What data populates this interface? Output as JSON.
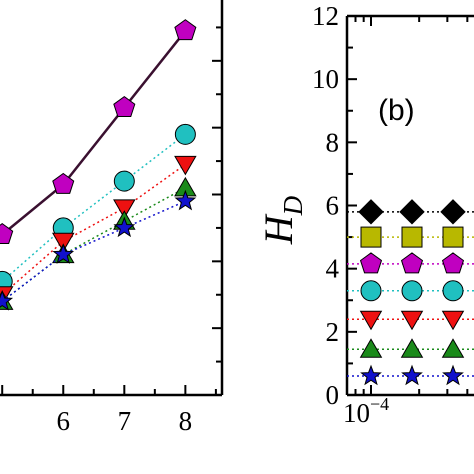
{
  "chart_data": [
    {
      "type": "line",
      "panel": "left (cropped)",
      "xlim": [
        4.8,
        8.6
      ],
      "ylim": [
        0,
        12
      ],
      "x_ticks": [
        {
          "value": 6,
          "label": "6"
        },
        {
          "value": 7,
          "label": "7"
        },
        {
          "value": 8,
          "label": "8"
        }
      ],
      "grid": false,
      "series": [
        {
          "marker": "pentagon",
          "color": "#c000c0",
          "line": "solid",
          "line_color": "#3a1030",
          "x": [
            5,
            6,
            7,
            8
          ],
          "y": [
            4.8,
            6.3,
            8.6,
            10.9
          ]
        },
        {
          "marker": "circle",
          "color": "#20c0c0",
          "line": "dotted",
          "x": [
            5,
            6,
            7,
            8
          ],
          "y": [
            3.4,
            5.0,
            6.4,
            7.8
          ]
        },
        {
          "marker": "triangle-down",
          "color": "#ee1111",
          "line": "dotted",
          "x": [
            5,
            6,
            7,
            8
          ],
          "y": [
            3.0,
            4.6,
            5.6,
            6.9
          ]
        },
        {
          "marker": "triangle-up",
          "color": "#1a8a1a",
          "line": "dotted",
          "x": [
            5,
            6,
            7,
            8
          ],
          "y": [
            2.8,
            4.2,
            5.2,
            6.2
          ]
        },
        {
          "marker": "star",
          "color": "#1111cc",
          "line": "dotted",
          "x": [
            5,
            6,
            7,
            8
          ],
          "y": [
            2.8,
            4.2,
            5.0,
            5.8
          ]
        }
      ]
    },
    {
      "type": "scatter",
      "panel": "right (cropped)",
      "annotation": "(b)",
      "ylabel_main": "H",
      "ylabel_sub": "D",
      "ylim": [
        0,
        12
      ],
      "x_scale": "log",
      "x_tick_label": {
        "base": "10",
        "exponent": "−4"
      },
      "y_ticks": [
        {
          "value": 0,
          "label": "0"
        },
        {
          "value": 2,
          "label": "2"
        },
        {
          "value": 4,
          "label": "4"
        },
        {
          "value": 6,
          "label": "6"
        },
        {
          "value": 8,
          "label": "8"
        },
        {
          "value": 10,
          "label": "10"
        },
        {
          "value": 12,
          "label": "12"
        }
      ],
      "grid": false,
      "series": [
        {
          "marker": "diamond",
          "color": "#000000",
          "y": [
            5.8,
            5.8,
            5.8
          ]
        },
        {
          "marker": "square",
          "color": "#b8b800",
          "y": [
            5.0,
            5.0,
            5.0
          ]
        },
        {
          "marker": "pentagon",
          "color": "#c000c0",
          "y": [
            4.15,
            4.15,
            4.15
          ]
        },
        {
          "marker": "circle",
          "color": "#20c0c0",
          "y": [
            3.3,
            3.3,
            3.3
          ]
        },
        {
          "marker": "triangle-down",
          "color": "#ee1111",
          "y": [
            2.4,
            2.4,
            2.4
          ]
        },
        {
          "marker": "triangle-up",
          "color": "#1a8a1a",
          "y": [
            1.45,
            1.45,
            1.45
          ]
        },
        {
          "marker": "star",
          "color": "#1111cc",
          "y": [
            0.6,
            0.6,
            0.6
          ]
        }
      ]
    }
  ]
}
